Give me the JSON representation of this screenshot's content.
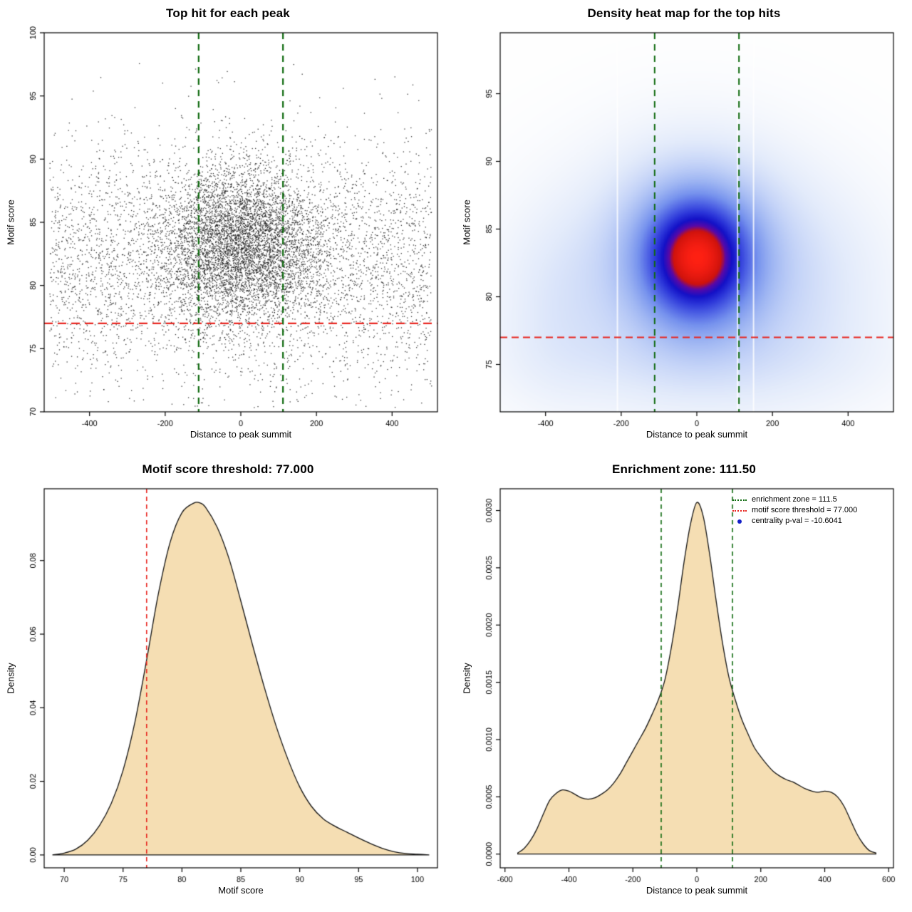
{
  "page": {
    "background": "#ffffff",
    "accent_colors": {
      "threshold_red": "#e8251f",
      "zone_green": "#0f6a0f",
      "pvalue_blue": "#1420c8",
      "density_fill": "#f5deb3"
    }
  },
  "chart_data": [
    {
      "type": "scatter",
      "title": "Top hit for each peak",
      "xlabel": "Distance to peak summit",
      "ylabel": "Motif score",
      "xlim": [
        -520,
        520
      ],
      "ylim": [
        70,
        100
      ],
      "xticks": {
        "values": [
          -400,
          -200,
          0,
          200,
          400
        ],
        "labels": [
          "-400",
          "-200",
          "0",
          "200",
          "400"
        ]
      },
      "yticks": {
        "values": [
          70,
          75,
          80,
          85,
          90,
          95,
          100
        ],
        "labels": [
          "70",
          "75",
          "80",
          "85",
          "90",
          "95",
          "100"
        ]
      },
      "hline": {
        "y": 77,
        "color": "#e8251f",
        "dash": [
          12,
          7
        ]
      },
      "vlines": {
        "x": [
          -111.5,
          111.5
        ],
        "color": "#0f6a0f",
        "dash": [
          9,
          7
        ]
      },
      "points": {
        "seed": 42,
        "color": "#1a1a1a",
        "n_cluster": 5200,
        "n_background": 4300,
        "cluster": {
          "x_mean": 0,
          "x_sd": 105,
          "y_mean": 83.3,
          "y_sd": 3.1
        },
        "background": {
          "x_min": -505,
          "x_max": 505,
          "y_mean": 81.6,
          "y_sd": 4.8
        }
      }
    },
    {
      "type": "heatmap",
      "title": "Density heat map for the top hits",
      "xlabel": "Distance to peak summit",
      "ylabel": "Motif score",
      "xlim": [
        -520,
        520
      ],
      "ylim": [
        71.5,
        99.5
      ],
      "xticks": {
        "values": [
          -400,
          -200,
          0,
          200,
          400
        ],
        "labels": [
          "-400",
          "-200",
          "0",
          "200",
          "400"
        ]
      },
      "yticks": {
        "values": [
          75,
          80,
          85,
          90,
          95
        ],
        "labels": [
          "75",
          "80",
          "85",
          "90",
          "95"
        ]
      },
      "hline": {
        "y": 77,
        "color": "#e8251f",
        "dash": [
          10,
          6
        ]
      },
      "vlines": {
        "x": [
          -111.5,
          111.5
        ],
        "color": "#0f6a0f",
        "dash": [
          9,
          7
        ]
      },
      "gaps": {
        "x": [
          -210,
          108,
          150
        ]
      },
      "density_model": [
        {
          "w": 1.0,
          "x0": 0,
          "sx": 100,
          "y0": 83,
          "sy": 3.2
        },
        {
          "w": 0.35,
          "x0": 0,
          "sx": 180,
          "y0": 83,
          "sy": 5.5
        },
        {
          "w": 0.18,
          "x0": 0,
          "sx": 320,
          "y0": 81.5,
          "sy": 6.5
        },
        {
          "w": 0.1,
          "x0": -380,
          "sx": 110,
          "y0": 79,
          "sy": 5
        },
        {
          "w": 0.08,
          "x0": 320,
          "sx": 160,
          "y0": 80,
          "sy": 5.5
        },
        {
          "w": 0.07,
          "x0": 0,
          "sx": 420,
          "y0": 75,
          "sy": 2.5
        }
      ],
      "colormap": [
        [
          0,
          "#ffffff"
        ],
        [
          0.05,
          "#f4f7fd"
        ],
        [
          0.12,
          "#e3ebfb"
        ],
        [
          0.22,
          "#c5d4f8"
        ],
        [
          0.34,
          "#9fb6f3"
        ],
        [
          0.46,
          "#7793ee"
        ],
        [
          0.57,
          "#4e62e5"
        ],
        [
          0.67,
          "#2b35d9"
        ],
        [
          0.75,
          "#1411c7"
        ],
        [
          0.82,
          "#5909a8"
        ],
        [
          0.87,
          "#cf130d"
        ],
        [
          1,
          "#ff2114"
        ]
      ]
    },
    {
      "type": "area",
      "title": "Motif score threshold: 77.000",
      "xlabel": "Motif score",
      "ylabel": "Density",
      "fill": "#f5deb3",
      "xlim": [
        68.3,
        101.7
      ],
      "ylim": [
        -0.0035,
        0.0995
      ],
      "xticks": {
        "values": [
          70,
          75,
          80,
          85,
          90,
          95,
          100
        ],
        "labels": [
          "70",
          "75",
          "80",
          "85",
          "90",
          "95",
          "100"
        ]
      },
      "yticks": {
        "values": [
          0,
          0.02,
          0.04,
          0.06,
          0.08
        ],
        "labels": [
          "0.00",
          "0.02",
          "0.04",
          "0.06",
          "0.08"
        ]
      },
      "vline": {
        "x": 77,
        "color": "#e8251f",
        "dash": [
          6,
          5
        ]
      },
      "curve": {
        "x": [
          69,
          70,
          71,
          72,
          73,
          74,
          75,
          76,
          77,
          78,
          79,
          80,
          81,
          81.5,
          82,
          83,
          84,
          85,
          86,
          87,
          88,
          89,
          90,
          91,
          92,
          93,
          94,
          95,
          96,
          97,
          98,
          99,
          100,
          101
        ],
        "y": [
          0,
          0.0005,
          0.0016,
          0.004,
          0.008,
          0.014,
          0.023,
          0.036,
          0.053,
          0.071,
          0.085,
          0.093,
          0.0956,
          0.0957,
          0.0945,
          0.089,
          0.0805,
          0.069,
          0.057,
          0.0455,
          0.035,
          0.026,
          0.0185,
          0.0132,
          0.0098,
          0.0078,
          0.0062,
          0.0046,
          0.0031,
          0.0018,
          0.0009,
          0.0004,
          0.0002,
          0
        ]
      }
    },
    {
      "type": "area",
      "title": "Enrichment zone: 111.50",
      "xlabel": "Distance to peak summit",
      "ylabel": "Density",
      "fill": "#f5deb3",
      "xlim": [
        -615,
        615
      ],
      "ylim": [
        -0.00012,
        0.00319
      ],
      "xticks": {
        "values": [
          -600,
          -400,
          -200,
          0,
          200,
          400,
          600
        ],
        "labels": [
          "-600",
          "-400",
          "-200",
          "0",
          "200",
          "400",
          "600"
        ]
      },
      "yticks": {
        "values": [
          0,
          0.0005,
          0.001,
          0.0015,
          0.002,
          0.0025,
          0.003
        ],
        "labels": [
          "0.0000",
          "0.0005",
          "0.0010",
          "0.0015",
          "0.0020",
          "0.0025",
          "0.0030"
        ]
      },
      "vlines": {
        "x": [
          -111.5,
          111.5
        ],
        "color": "#0f6a0f",
        "dash": [
          6,
          5
        ]
      },
      "curve": {
        "x": [
          -560,
          -540,
          -520,
          -500,
          -480,
          -460,
          -440,
          -420,
          -400,
          -380,
          -360,
          -340,
          -320,
          -300,
          -280,
          -260,
          -240,
          -220,
          -200,
          -180,
          -160,
          -140,
          -120,
          -100,
          -80,
          -60,
          -40,
          -20,
          0,
          20,
          40,
          60,
          80,
          100,
          120,
          140,
          160,
          180,
          200,
          220,
          240,
          260,
          280,
          300,
          320,
          340,
          360,
          380,
          400,
          420,
          440,
          460,
          480,
          500,
          520,
          540,
          560
        ],
        "y": [
          1e-05,
          5e-05,
          0.00012,
          0.00022,
          0.00035,
          0.00047,
          0.00053,
          0.00056,
          0.00055,
          0.00052,
          0.00049,
          0.00048,
          0.00049,
          0.00052,
          0.00056,
          0.00062,
          0.0007,
          0.0008,
          0.0009,
          0.001,
          0.0011,
          0.00122,
          0.00135,
          0.00152,
          0.0018,
          0.00215,
          0.00255,
          0.00288,
          0.00307,
          0.00295,
          0.00262,
          0.00222,
          0.00185,
          0.00155,
          0.00135,
          0.00118,
          0.00105,
          0.00093,
          0.00085,
          0.00078,
          0.00072,
          0.00068,
          0.00065,
          0.00063,
          0.0006,
          0.00057,
          0.00055,
          0.00054,
          0.00055,
          0.00054,
          0.0005,
          0.00042,
          0.0003,
          0.00018,
          9e-05,
          3e-05,
          1e-05
        ]
      },
      "legend": [
        {
          "label": "enrichment zone = 111.5",
          "color": "#0f6a0f",
          "marker": "line"
        },
        {
          "label": "motif score threshold = 77.000",
          "color": "#e8251f",
          "marker": "line"
        },
        {
          "label": "centrality p-val = -10.6041",
          "color": "#1420c8",
          "marker": "point"
        }
      ]
    }
  ]
}
